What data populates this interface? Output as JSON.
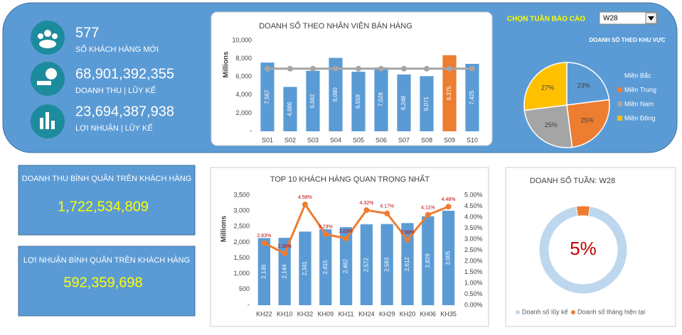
{
  "header": {
    "selector_label": "CHỌN TUẦN BÁO CÁO",
    "selected_week": "W28"
  },
  "kpis": [
    {
      "value": "577",
      "label": "SỐ KHÁCH HÀNG MỚI"
    },
    {
      "value": "68,901,392,355",
      "label": "DOANH THU | LŨY KẾ"
    },
    {
      "value": "23,694,387,938",
      "label": "LỢI NHUẬN | LŨY KẾ"
    }
  ],
  "cards": [
    {
      "title": "DOANH THU BÌNH QUÂN TRÊN KHÁCH HÀNG",
      "value": "1,722,534,809"
    },
    {
      "title": "LỢI NHUẬN BÌNH QUÂN TRÊN KHÁCH HÀNG",
      "value": "592,359,698"
    }
  ],
  "chart_data": [
    {
      "type": "bar",
      "title": "DOANH SỐ THEO NHÂN VIÊN BÁN HÀNG",
      "ylabel": "Millions",
      "categories": [
        "S01",
        "S02",
        "S03",
        "S04",
        "S05",
        "S06",
        "S07",
        "S08",
        "S09",
        "S10"
      ],
      "series": [
        {
          "type": "bar",
          "values": [
            7567,
            4886,
            6662,
            8080,
            6559,
            7028,
            6248,
            6071,
            8375,
            7425
          ],
          "value_labels": [
            "7,567",
            "4,886",
            "6,662",
            "8,080",
            "6,559",
            "7,028",
            "6,248",
            "6,071",
            "8,375",
            "7,425"
          ],
          "colors": [
            "#5b9bd5",
            "#5b9bd5",
            "#5b9bd5",
            "#5b9bd5",
            "#5b9bd5",
            "#5b9bd5",
            "#5b9bd5",
            "#5b9bd5",
            "#ed7d31",
            "#5b9bd5"
          ]
        },
        {
          "type": "line",
          "color": "#a5a5a5",
          "values": [
            6890,
            6890,
            6890,
            6890,
            6890,
            6890,
            6890,
            6890,
            6890,
            6890
          ]
        }
      ],
      "ylim": [
        0,
        10000
      ],
      "yticks": [
        {
          "value": 0,
          "label": "-"
        },
        {
          "value": 2000,
          "label": "2,000"
        },
        {
          "value": 4000,
          "label": "4,000"
        },
        {
          "value": 6000,
          "label": "6,000"
        },
        {
          "value": 8000,
          "label": "8,000"
        },
        {
          "value": 10000,
          "label": "10,000"
        }
      ]
    },
    {
      "type": "pie",
      "title": "DOANH SỐ THEO KHU VỰC",
      "categories": [
        "Miền Bắc",
        "Miền Trung",
        "Miền Nam",
        "Miền Đông"
      ],
      "values": [
        23,
        25,
        25,
        27
      ],
      "value_labels": [
        "23%",
        "25%",
        "25%",
        "27%"
      ],
      "colors": [
        "#5b9bd5",
        "#ed7d31",
        "#a5a5a5",
        "#ffc000"
      ],
      "legend": "right"
    },
    {
      "type": "bar",
      "title": "TOP 10 KHÁCH HÀNG QUAN TRỌNG NHẤT",
      "ylabel": "Millions",
      "categories": [
        "KH22",
        "KH10",
        "KH32",
        "KH09",
        "KH11",
        "KH24",
        "KH29",
        "KH20",
        "KH06",
        "KH35"
      ],
      "series": [
        {
          "type": "bar",
          "color": "#5b9bd5",
          "values": [
            2136,
            2144,
            2341,
            2415,
            2482,
            2572,
            2583,
            2612,
            2829,
            3005
          ],
          "value_labels": [
            "2,136",
            "2,144",
            "2,341",
            "2,415",
            "2,482",
            "2,572",
            "2,583",
            "2,612",
            "2,829",
            "3,005"
          ]
        },
        {
          "type": "line",
          "axis": "y2",
          "color": "#ed7d31",
          "values": [
            2.83,
            2.35,
            4.58,
            3.23,
            3.03,
            4.32,
            4.17,
            2.98,
            4.11,
            4.48
          ],
          "value_labels": [
            "2.83%",
            "2.35%",
            "4.58%",
            "3.23%",
            "3.03%",
            "4.32%",
            "4.17%",
            "2.98%",
            "4.11%",
            "4.48%"
          ]
        }
      ],
      "ylim": [
        0,
        3500
      ],
      "yticks": [
        {
          "value": 0,
          "label": "-"
        },
        {
          "value": 500,
          "label": "500"
        },
        {
          "value": 1000,
          "label": "1,000"
        },
        {
          "value": 1500,
          "label": "1,500"
        },
        {
          "value": 2000,
          "label": "2,000"
        },
        {
          "value": 2500,
          "label": "2,500"
        },
        {
          "value": 3000,
          "label": "3,000"
        },
        {
          "value": 3500,
          "label": "3,500"
        }
      ],
      "y2lim": [
        0,
        5
      ],
      "y2ticks": [
        {
          "value": 0,
          "label": "0.00%"
        },
        {
          "value": 0.5,
          "label": "0.50%"
        },
        {
          "value": 1,
          "label": "1.00%"
        },
        {
          "value": 1.5,
          "label": "1.50%"
        },
        {
          "value": 2,
          "label": "2.00%"
        },
        {
          "value": 2.5,
          "label": "2.50%"
        },
        {
          "value": 3,
          "label": "3.00%"
        },
        {
          "value": 3.5,
          "label": "3.50%"
        },
        {
          "value": 4,
          "label": "4.00%"
        },
        {
          "value": 4.5,
          "label": "4.50%"
        },
        {
          "value": 5,
          "label": "5.00%"
        }
      ]
    },
    {
      "type": "donut",
      "title": "DOANH SỐ TUẦN: W28",
      "categories": [
        "Doanh số lũy kế",
        "Doanh số tháng hiện tại"
      ],
      "values": [
        95,
        5
      ],
      "value_labels": [
        null,
        "5%"
      ],
      "colors": [
        "#bdd7ee",
        "#ed7d31"
      ],
      "legend": "bottom"
    }
  ]
}
